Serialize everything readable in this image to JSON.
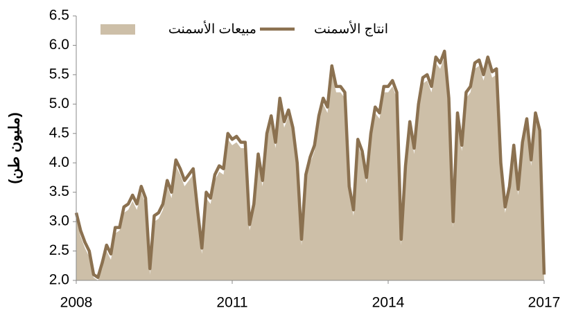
{
  "chart_data": {
    "type": "area-line",
    "y_label": "(مليون طن)",
    "categories": [
      "2008",
      null,
      null,
      null,
      null,
      null,
      null,
      null,
      null,
      null,
      null,
      null,
      null,
      null,
      null,
      null,
      null,
      null,
      null,
      null,
      null,
      null,
      null,
      null,
      null,
      null,
      null,
      null,
      null,
      null,
      null,
      null,
      null,
      null,
      null,
      null,
      "2011",
      null,
      null,
      null,
      null,
      null,
      null,
      null,
      null,
      null,
      null,
      null,
      null,
      null,
      null,
      null,
      null,
      null,
      null,
      null,
      null,
      null,
      null,
      null,
      null,
      null,
      null,
      null,
      null,
      null,
      null,
      null,
      null,
      null,
      null,
      null,
      "2014",
      null,
      null,
      null,
      null,
      null,
      null,
      null,
      null,
      null,
      null,
      null,
      null,
      null,
      null,
      null,
      null,
      null,
      null,
      null,
      null,
      null,
      null,
      null,
      null,
      null,
      null,
      null,
      null,
      null,
      null,
      null,
      null,
      null,
      null,
      null,
      "2017"
    ],
    "series": [
      {
        "name": "مبيعات الأسمنت",
        "kind": "area",
        "color": "#cdbfa8",
        "values": [
          3.05,
          2.75,
          2.55,
          2.4,
          2.05,
          2.0,
          2.2,
          2.5,
          2.35,
          2.8,
          2.85,
          3.15,
          3.2,
          3.35,
          3.2,
          3.5,
          3.3,
          2.1,
          3.0,
          3.05,
          3.2,
          3.6,
          3.4,
          3.95,
          3.8,
          3.6,
          3.7,
          3.8,
          3.1,
          2.45,
          3.4,
          3.3,
          3.7,
          3.85,
          3.8,
          4.4,
          4.3,
          4.35,
          4.25,
          4.25,
          2.85,
          3.2,
          4.05,
          3.6,
          4.4,
          4.7,
          4.25,
          5.0,
          4.6,
          4.8,
          4.5,
          3.9,
          2.6,
          3.7,
          4.0,
          4.2,
          4.7,
          5.0,
          4.85,
          5.55,
          5.2,
          5.2,
          5.1,
          3.5,
          3.1,
          4.3,
          4.1,
          3.65,
          4.4,
          4.85,
          4.75,
          5.2,
          5.2,
          5.3,
          5.1,
          2.6,
          3.85,
          4.6,
          4.15,
          4.9,
          5.35,
          5.4,
          5.2,
          5.7,
          5.6,
          5.8,
          5.0,
          2.9,
          4.75,
          4.2,
          5.1,
          5.2,
          5.6,
          5.65,
          5.4,
          5.7,
          5.45,
          5.5,
          3.9,
          3.15,
          3.5,
          4.2,
          3.45,
          4.25,
          4.65,
          3.95,
          4.75,
          4.45,
          2.0
        ]
      },
      {
        "name": "انتاج الأسمنت",
        "kind": "line",
        "color": "#8b7150",
        "values": [
          3.15,
          2.85,
          2.65,
          2.5,
          2.1,
          2.05,
          2.3,
          2.6,
          2.45,
          2.9,
          2.9,
          3.25,
          3.3,
          3.45,
          3.3,
          3.6,
          3.4,
          2.2,
          3.1,
          3.15,
          3.3,
          3.7,
          3.5,
          4.05,
          3.9,
          3.7,
          3.8,
          3.9,
          3.2,
          2.55,
          3.5,
          3.4,
          3.8,
          3.95,
          3.9,
          4.5,
          4.4,
          4.45,
          4.35,
          4.35,
          2.95,
          3.3,
          4.15,
          3.7,
          4.5,
          4.8,
          4.35,
          5.1,
          4.7,
          4.9,
          4.6,
          4.0,
          2.7,
          3.8,
          4.1,
          4.3,
          4.8,
          5.1,
          4.95,
          5.65,
          5.3,
          5.3,
          5.2,
          3.6,
          3.2,
          4.4,
          4.2,
          3.75,
          4.5,
          4.95,
          4.85,
          5.3,
          5.3,
          5.4,
          5.2,
          2.7,
          3.95,
          4.7,
          4.25,
          5.0,
          5.45,
          5.5,
          5.3,
          5.8,
          5.7,
          5.9,
          5.1,
          3.0,
          4.85,
          4.3,
          5.2,
          5.3,
          5.7,
          5.75,
          5.5,
          5.8,
          5.55,
          5.6,
          4.0,
          3.25,
          3.6,
          4.3,
          3.55,
          4.35,
          4.75,
          4.05,
          4.85,
          4.55,
          2.1
        ]
      }
    ],
    "ylim": [
      2,
      6.5
    ],
    "yticks": [
      {
        "value": 2,
        "label": "2.0"
      },
      2.5,
      {
        "value": 3,
        "label": "3.0"
      },
      3.5,
      {
        "value": 4,
        "label": "4.0"
      },
      4.5,
      {
        "value": 5,
        "label": "5.0"
      },
      5.5,
      {
        "value": 6,
        "label": "6.0"
      },
      6.5
    ],
    "legend": "top"
  }
}
